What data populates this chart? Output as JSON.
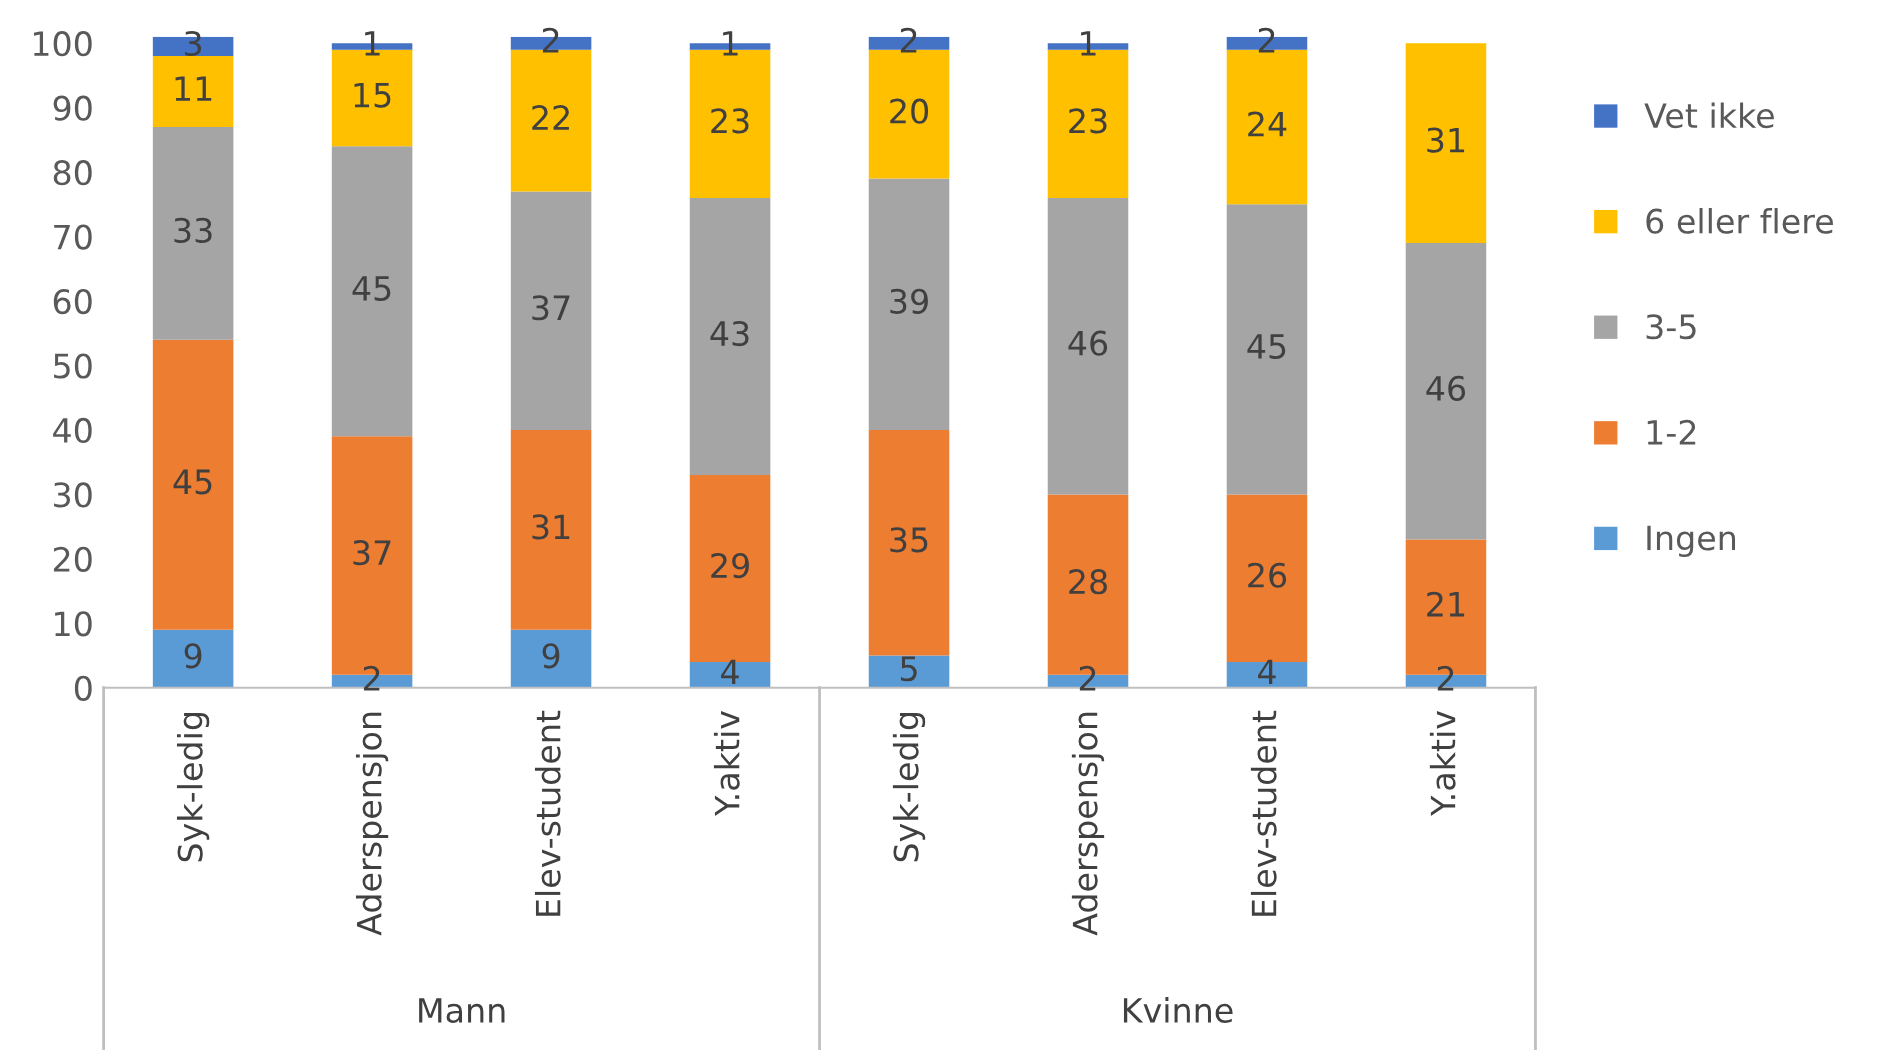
{
  "chart_data": {
    "type": "bar",
    "stacked": true,
    "categories": [
      "Syk-ledig",
      "Aderspensjon",
      "Elev-student",
      "Y.aktiv",
      "Syk-ledig",
      "Aderspensjon",
      "Elev-student",
      "Y.aktiv"
    ],
    "series": [
      {
        "name": "Ingen",
        "color": "#5b9bd5",
        "values": [
          9,
          2,
          9,
          4,
          5,
          2,
          4,
          2
        ]
      },
      {
        "name": "1-2",
        "color": "#ed7d31",
        "values": [
          45,
          37,
          31,
          29,
          35,
          28,
          26,
          21
        ]
      },
      {
        "name": "3-5",
        "color": "#a5a5a5",
        "values": [
          33,
          45,
          37,
          43,
          39,
          46,
          45,
          46
        ]
      },
      {
        "name": "6 eller flere",
        "color": "#ffc000",
        "values": [
          11,
          15,
          22,
          23,
          20,
          23,
          24,
          31
        ]
      },
      {
        "name": "Vet ikke",
        "color": "#4472c4",
        "values": [
          3,
          1,
          2,
          1,
          2,
          1,
          2,
          0
        ],
        "value_labels": [
          "3",
          "1",
          "2",
          "1",
          "2",
          "1",
          "2",
          null
        ]
      }
    ],
    "ylim": [
      0,
      101
    ],
    "yticks": [
      0,
      10,
      20,
      30,
      40,
      50,
      60,
      70,
      80,
      90,
      100
    ],
    "annotations": [
      "Mann",
      "Kvinne"
    ],
    "data_labels": true,
    "legend": "right",
    "grid": false
  }
}
